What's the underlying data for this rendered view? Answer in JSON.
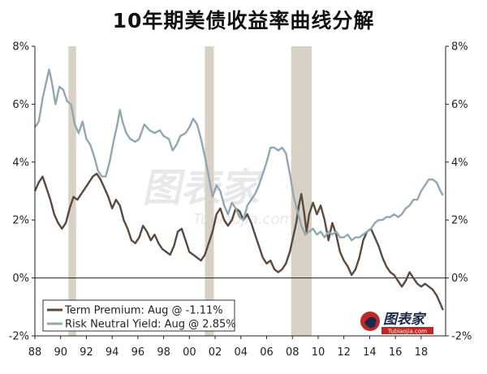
{
  "chart_data": {
    "type": "line",
    "title": "10年期美债收益率曲线分解",
    "xlabel": "",
    "ylabel": "",
    "xlim": [
      1988,
      2019.9
    ],
    "ylim": [
      -2,
      8
    ],
    "x_ticks": [
      "88",
      "90",
      "92",
      "94",
      "96",
      "98",
      "00",
      "02",
      "04",
      "06",
      "08",
      "10",
      "12",
      "14",
      "16",
      "18"
    ],
    "y_ticks": [
      "8%",
      "6%",
      "4%",
      "2%",
      "0%",
      "-2%"
    ],
    "y_ticks_right": [
      "8%",
      "6%",
      "4%",
      "2%",
      "0%",
      "-2%"
    ],
    "grid": false,
    "recession_shading": [
      [
        1990.6,
        1991.2
      ],
      [
        2001.2,
        2001.9
      ],
      [
        2007.9,
        2009.5
      ]
    ],
    "recession_color": "#d8d2c6",
    "legend_position": "bottom-left",
    "series": [
      {
        "name": "Term Premium: Aug @ -1.11%",
        "color": "#5a4a3e",
        "points": [
          [
            1988.0,
            3.0
          ],
          [
            1988.3,
            3.3
          ],
          [
            1988.6,
            3.5
          ],
          [
            1988.9,
            3.1
          ],
          [
            1989.2,
            2.7
          ],
          [
            1989.5,
            2.2
          ],
          [
            1989.8,
            1.9
          ],
          [
            1990.1,
            1.7
          ],
          [
            1990.4,
            1.9
          ],
          [
            1990.7,
            2.4
          ],
          [
            1991.0,
            2.8
          ],
          [
            1991.3,
            2.7
          ],
          [
            1991.6,
            2.9
          ],
          [
            1991.9,
            3.1
          ],
          [
            1992.2,
            3.3
          ],
          [
            1992.5,
            3.5
          ],
          [
            1992.8,
            3.6
          ],
          [
            1993.1,
            3.4
          ],
          [
            1993.4,
            3.1
          ],
          [
            1993.7,
            2.8
          ],
          [
            1994.0,
            2.4
          ],
          [
            1994.3,
            2.7
          ],
          [
            1994.6,
            2.5
          ],
          [
            1994.9,
            2.0
          ],
          [
            1995.2,
            1.7
          ],
          [
            1995.5,
            1.3
          ],
          [
            1995.8,
            1.2
          ],
          [
            1996.1,
            1.4
          ],
          [
            1996.4,
            1.8
          ],
          [
            1996.7,
            1.6
          ],
          [
            1997.0,
            1.3
          ],
          [
            1997.3,
            1.5
          ],
          [
            1997.6,
            1.2
          ],
          [
            1997.9,
            1.0
          ],
          [
            1998.2,
            0.9
          ],
          [
            1998.5,
            0.8
          ],
          [
            1998.8,
            1.1
          ],
          [
            1999.1,
            1.6
          ],
          [
            1999.4,
            1.7
          ],
          [
            1999.7,
            1.3
          ],
          [
            2000.0,
            0.9
          ],
          [
            2000.3,
            0.8
          ],
          [
            2000.6,
            0.7
          ],
          [
            2000.9,
            0.6
          ],
          [
            2001.2,
            0.8
          ],
          [
            2001.5,
            1.2
          ],
          [
            2001.8,
            1.6
          ],
          [
            2002.1,
            2.2
          ],
          [
            2002.4,
            2.4
          ],
          [
            2002.7,
            2.0
          ],
          [
            2003.0,
            1.8
          ],
          [
            2003.3,
            2.0
          ],
          [
            2003.6,
            2.4
          ],
          [
            2003.9,
            2.3
          ],
          [
            2004.2,
            2.0
          ],
          [
            2004.5,
            2.2
          ],
          [
            2004.8,
            1.9
          ],
          [
            2005.1,
            1.5
          ],
          [
            2005.4,
            1.1
          ],
          [
            2005.7,
            0.7
          ],
          [
            2006.0,
            0.5
          ],
          [
            2006.3,
            0.6
          ],
          [
            2006.6,
            0.3
          ],
          [
            2006.9,
            0.2
          ],
          [
            2007.2,
            0.3
          ],
          [
            2007.5,
            0.5
          ],
          [
            2007.8,
            0.9
          ],
          [
            2008.1,
            1.5
          ],
          [
            2008.3,
            1.9
          ],
          [
            2008.5,
            2.5
          ],
          [
            2008.7,
            2.9
          ],
          [
            2008.9,
            2.3
          ],
          [
            2009.1,
            1.6
          ],
          [
            2009.3,
            2.2
          ],
          [
            2009.6,
            2.6
          ],
          [
            2009.9,
            2.2
          ],
          [
            2010.2,
            2.5
          ],
          [
            2010.5,
            2.0
          ],
          [
            2010.8,
            1.3
          ],
          [
            2011.1,
            1.9
          ],
          [
            2011.4,
            1.5
          ],
          [
            2011.7,
            0.9
          ],
          [
            2012.0,
            0.6
          ],
          [
            2012.3,
            0.4
          ],
          [
            2012.6,
            0.1
          ],
          [
            2012.9,
            0.3
          ],
          [
            2013.2,
            0.7
          ],
          [
            2013.5,
            1.3
          ],
          [
            2013.8,
            1.6
          ],
          [
            2014.1,
            1.7
          ],
          [
            2014.4,
            1.4
          ],
          [
            2014.7,
            1.1
          ],
          [
            2015.0,
            0.7
          ],
          [
            2015.3,
            0.4
          ],
          [
            2015.6,
            0.2
          ],
          [
            2015.9,
            0.1
          ],
          [
            2016.2,
            -0.1
          ],
          [
            2016.5,
            -0.3
          ],
          [
            2016.8,
            -0.1
          ],
          [
            2017.1,
            0.2
          ],
          [
            2017.4,
            0.0
          ],
          [
            2017.7,
            -0.2
          ],
          [
            2018.0,
            -0.3
          ],
          [
            2018.3,
            -0.2
          ],
          [
            2018.6,
            -0.3
          ],
          [
            2018.9,
            -0.4
          ],
          [
            2019.2,
            -0.6
          ],
          [
            2019.5,
            -0.9
          ],
          [
            2019.7,
            -1.11
          ]
        ]
      },
      {
        "name": "Risk Neutral Yield: Aug @ 2.85%",
        "color": "#93a7b2",
        "points": [
          [
            1988.0,
            5.2
          ],
          [
            1988.3,
            5.4
          ],
          [
            1988.6,
            6.2
          ],
          [
            1988.9,
            6.8
          ],
          [
            1989.1,
            7.2
          ],
          [
            1989.3,
            6.8
          ],
          [
            1989.6,
            6.0
          ],
          [
            1989.9,
            6.6
          ],
          [
            1990.2,
            6.5
          ],
          [
            1990.5,
            6.1
          ],
          [
            1990.8,
            6.0
          ],
          [
            1991.1,
            5.3
          ],
          [
            1991.4,
            5.0
          ],
          [
            1991.7,
            5.4
          ],
          [
            1992.0,
            4.8
          ],
          [
            1992.3,
            4.6
          ],
          [
            1992.6,
            4.2
          ],
          [
            1992.9,
            3.7
          ],
          [
            1993.2,
            3.5
          ],
          [
            1993.5,
            3.5
          ],
          [
            1993.8,
            4.0
          ],
          [
            1994.1,
            4.7
          ],
          [
            1994.4,
            5.3
          ],
          [
            1994.6,
            5.8
          ],
          [
            1994.8,
            5.4
          ],
          [
            1995.1,
            5.0
          ],
          [
            1995.4,
            4.8
          ],
          [
            1995.8,
            4.7
          ],
          [
            1996.1,
            4.8
          ],
          [
            1996.5,
            5.3
          ],
          [
            1996.9,
            5.1
          ],
          [
            1997.3,
            5.0
          ],
          [
            1997.7,
            5.1
          ],
          [
            1998.0,
            4.9
          ],
          [
            1998.4,
            4.8
          ],
          [
            1998.7,
            4.4
          ],
          [
            1999.0,
            4.6
          ],
          [
            1999.3,
            4.9
          ],
          [
            1999.7,
            5.0
          ],
          [
            2000.0,
            5.2
          ],
          [
            2000.3,
            5.5
          ],
          [
            2000.6,
            5.3
          ],
          [
            2000.9,
            4.8
          ],
          [
            2001.2,
            4.2
          ],
          [
            2001.5,
            3.5
          ],
          [
            2001.8,
            2.8
          ],
          [
            2002.1,
            3.2
          ],
          [
            2002.4,
            3.0
          ],
          [
            2002.7,
            2.5
          ],
          [
            2003.0,
            2.2
          ],
          [
            2003.3,
            2.6
          ],
          [
            2003.6,
            2.4
          ],
          [
            2003.9,
            2.1
          ],
          [
            2004.2,
            2.0
          ],
          [
            2004.5,
            2.5
          ],
          [
            2004.8,
            2.7
          ],
          [
            2005.1,
            2.9
          ],
          [
            2005.4,
            3.2
          ],
          [
            2005.7,
            3.6
          ],
          [
            2006.0,
            4.0
          ],
          [
            2006.3,
            4.5
          ],
          [
            2006.6,
            4.5
          ],
          [
            2006.9,
            4.4
          ],
          [
            2007.2,
            4.5
          ],
          [
            2007.5,
            4.3
          ],
          [
            2007.8,
            3.6
          ],
          [
            2008.1,
            2.8
          ],
          [
            2008.4,
            2.3
          ],
          [
            2008.7,
            1.8
          ],
          [
            2009.0,
            1.5
          ],
          [
            2009.3,
            1.6
          ],
          [
            2009.6,
            1.7
          ],
          [
            2009.9,
            1.5
          ],
          [
            2010.2,
            1.6
          ],
          [
            2010.5,
            1.4
          ],
          [
            2010.8,
            1.6
          ],
          [
            2011.1,
            1.5
          ],
          [
            2011.4,
            1.6
          ],
          [
            2011.7,
            1.4
          ],
          [
            2012.0,
            1.4
          ],
          [
            2012.3,
            1.5
          ],
          [
            2012.6,
            1.3
          ],
          [
            2012.9,
            1.4
          ],
          [
            2013.2,
            1.4
          ],
          [
            2013.5,
            1.5
          ],
          [
            2013.8,
            1.6
          ],
          [
            2014.1,
            1.7
          ],
          [
            2014.4,
            1.9
          ],
          [
            2014.7,
            2.0
          ],
          [
            2015.0,
            2.0
          ],
          [
            2015.3,
            2.1
          ],
          [
            2015.6,
            2.1
          ],
          [
            2015.9,
            2.2
          ],
          [
            2016.2,
            2.1
          ],
          [
            2016.5,
            2.2
          ],
          [
            2016.8,
            2.4
          ],
          [
            2017.1,
            2.5
          ],
          [
            2017.4,
            2.7
          ],
          [
            2017.7,
            2.7
          ],
          [
            2018.0,
            3.0
          ],
          [
            2018.3,
            3.2
          ],
          [
            2018.6,
            3.4
          ],
          [
            2018.9,
            3.4
          ],
          [
            2019.2,
            3.3
          ],
          [
            2019.5,
            3.0
          ],
          [
            2019.7,
            2.85
          ]
        ]
      }
    ]
  },
  "watermark": {
    "main": "图表家",
    "sub": "Tubiaojia.com"
  },
  "logo": {
    "text": "图表家",
    "sub": "Tubiaojia.com"
  }
}
